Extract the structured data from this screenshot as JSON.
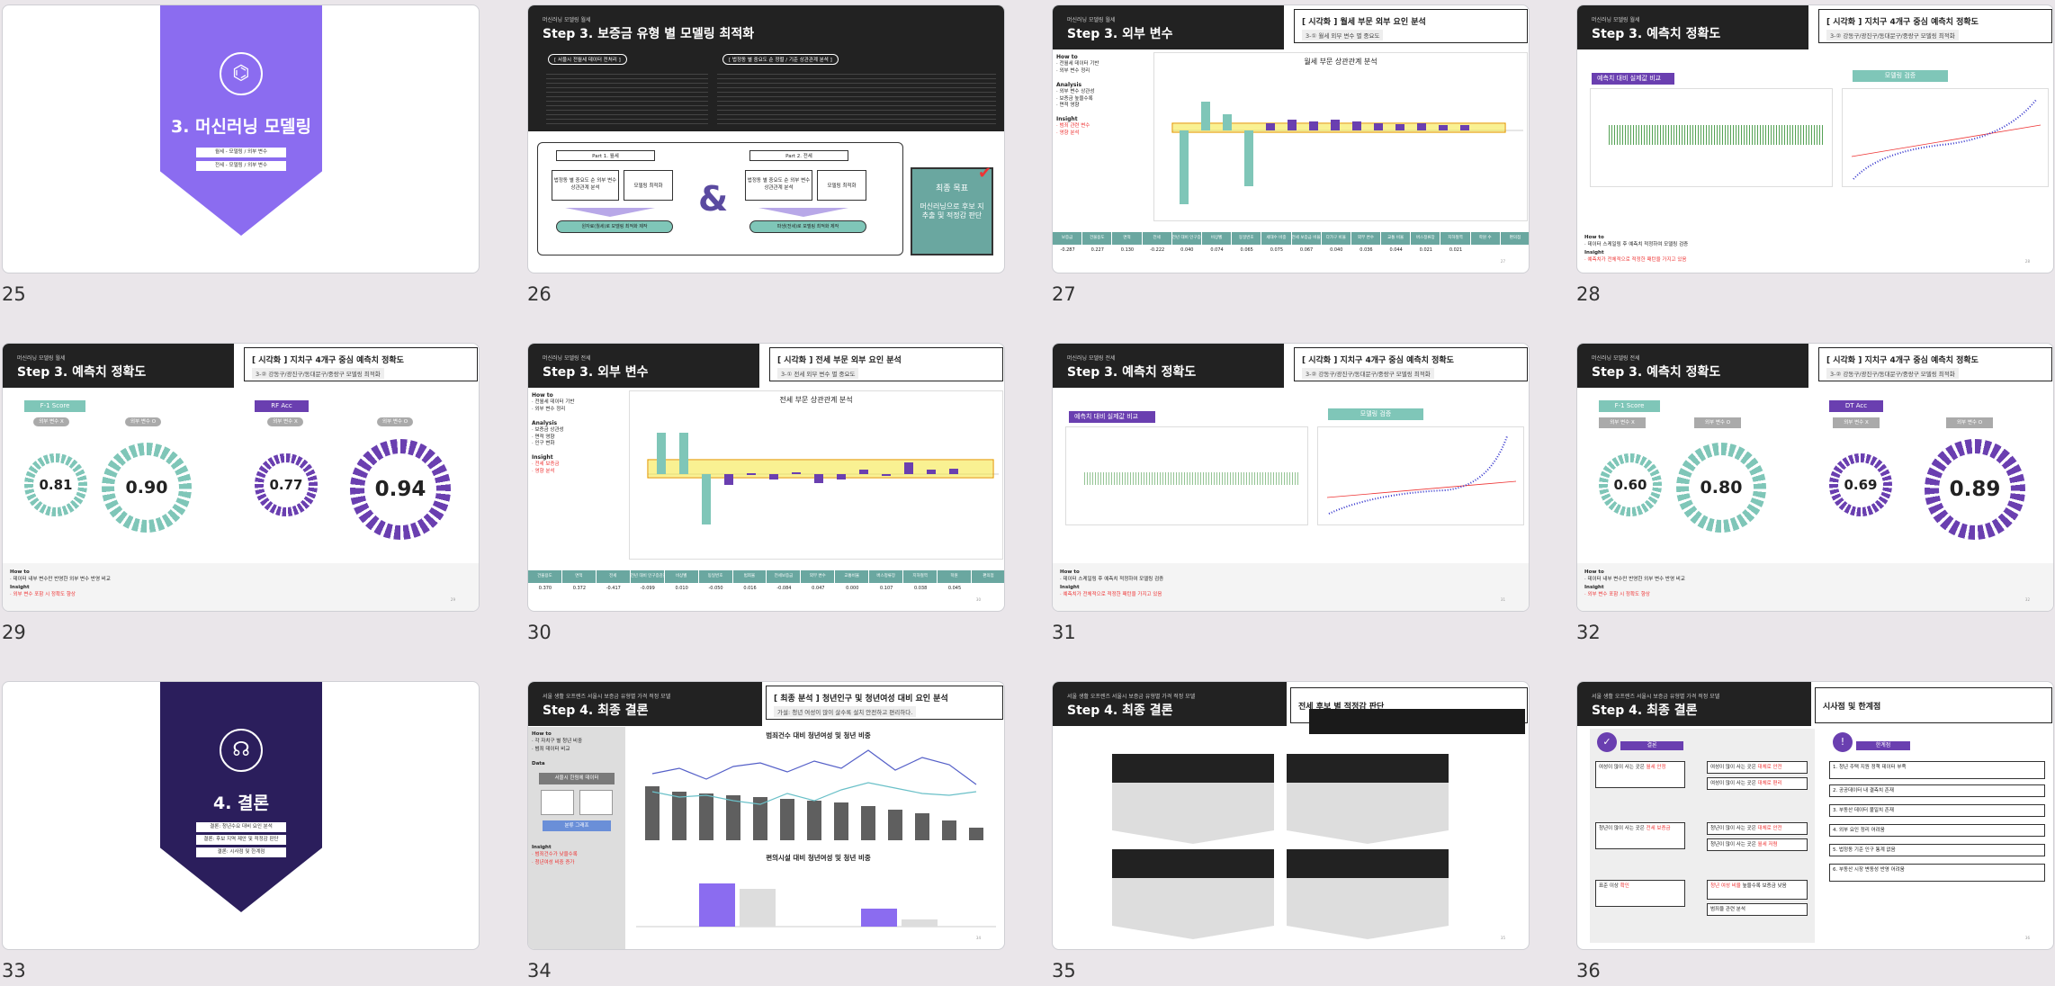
{
  "slides": [
    {
      "num": "25",
      "cover_title": "3. 머신러닝 모델링",
      "cover_items": [
        "월세 - 모델링 / 외부 변수",
        "전세 - 모델링 / 외부 변수"
      ]
    },
    {
      "num": "26",
      "sup": "머신러닝 모델링 월세",
      "title": "Step 3. 보증금 유형 별 모델링 최적화",
      "label_left": "[ 서울시 전월세 데이터 전처리 ]",
      "label_right": "[ 법정동 별 중요도 순 정렬 / 기준 상관관계 분석 ]",
      "part1": "Part 1. 월세",
      "part2": "Part 2. 전세",
      "p1a": "법정동 별 중요도 순 외부 변수 상관관계 분석",
      "p1b": "모델링 최적화",
      "p2a": "법정동 별 중요도 순 외부 변수 상관관계 분석",
      "p2b": "모델링 최적화",
      "p1c": "원자료(월세)로 모델링 최적화 제작",
      "p2c": "파생(전세)로 모델링 최적화 제작",
      "amp": "&",
      "goal_title": "최종 목표",
      "goal_text": "머신러닝으로 후보 지 추출 및 적정감 판단"
    },
    {
      "num": "27",
      "sup": "머신러닝 모델링 월세",
      "title": "Step 3. 외부 변수",
      "box_t1": "[ 시각화 ] 월세 부문 외부 요인 분석",
      "box_t2": "3-① 월세 외부 변수 별 중요도",
      "chart_title": "월세 부문 상관관계 분석",
      "howto": "How to",
      "analysis": "Analysis",
      "insight": "Insight",
      "headers": [
        "보증금",
        "건물용도",
        "면적",
        "전세",
        "전년 대비 인구증감율",
        "비상벨",
        "동일번호",
        "세대수 비중",
        "전세 보증금 비율",
        "다가구 비율",
        "외부 변수",
        "교통 비율",
        "버스정류장",
        "지하철역",
        "학원 수",
        "편의점"
      ],
      "values": [
        "-0.287",
        "0.227",
        "0.130",
        "-0.222",
        "0.040",
        "0.074",
        "0.065",
        "0.075",
        "0.067",
        "0.040",
        "0.036",
        "0.044",
        "0.021",
        "0.021",
        "",
        ""
      ]
    },
    {
      "num": "28",
      "sup": "머신러닝 모델링 월세",
      "title": "Step 3. 예측치 정확도",
      "box_t1": "[ 시각화 ] 지치구 4개구 중심 예측치 정확도",
      "box_t2": "3-② 강동구/광진구/동대문구/중랑구 모델링 최적화",
      "purple": "예측치 대비 실제값 비교",
      "teal": "모델링 검증",
      "howto": "How to",
      "insight": "Insight"
    },
    {
      "num": "29",
      "sup": "머신러닝 모델링 월세",
      "title": "Step 3. 예측치 정확도",
      "box_t1": "[ 시각화 ] 지치구 4개구 중심 예측치 정확도",
      "box_t2": "3-② 강동구/광진구/동대문구/중랑구 모델링 최적화",
      "left_pill": "F-1 Score",
      "right_pill": "RF Acc",
      "chip1": "외부 변수 X",
      "chip2": "외부 변수 O",
      "chip3": "외부 변수 X",
      "chip4": "외부 변수 O",
      "v1": "0.81",
      "v2": "0.90",
      "v3": "0.77",
      "v4": "0.94",
      "howto": "How to",
      "insight": "Insight"
    },
    {
      "num": "30",
      "sup": "머신러닝 모델링 전세",
      "title": "Step 3. 외부 변수",
      "box_t1": "[ 시각화 ] 전세 부문 외부 요인 분석",
      "box_t2": "3-① 전세 외부 변수 별 중요도",
      "chart_title": "전세 부문 상관관계 분석",
      "howto": "How to",
      "analysis": "Analysis",
      "insight": "Insight",
      "headers": [
        "건물용도",
        "면적",
        "전세",
        "전년 대비 인구증감율",
        "비상벨",
        "동일번호",
        "범죄율",
        "전세보증금",
        "외부 변수",
        "교통비율",
        "버스정류장",
        "지하철역",
        "학원",
        "편의점"
      ],
      "values": [
        "0.370",
        "0.372",
        "-0.417",
        "-0.099",
        "0.010",
        "-0.050",
        "0.016",
        "-0.084",
        "0.047",
        "0.000",
        "0.107",
        "0.038",
        "0.045",
        ""
      ]
    },
    {
      "num": "31",
      "sup": "머신러닝 모델링 전세",
      "title": "Step 3. 예측치 정확도",
      "box_t1": "[ 시각화 ] 지치구 4개구 중심 예측치 정확도",
      "box_t2": "3-② 강동구/광진구/동대문구/중랑구 모델링 최적화",
      "purple": "예측치 대비 실제값 비교",
      "teal": "모델링 검증",
      "howto": "How to",
      "insight": "Insight"
    },
    {
      "num": "32",
      "sup": "머신러닝 모델링 전세",
      "title": "Step 3. 예측치 정확도",
      "box_t1": "[ 시각화 ] 지치구 4개구 중심 예측치 정확도",
      "box_t2": "3-② 강동구/광진구/동대문구/중랑구 모델링 최적화",
      "left_pill": "F-1 Score",
      "right_pill": "DT Acc",
      "chip1": "외부 변수 X",
      "chip2": "외부 변수 O",
      "chip3": "외부 변수 X",
      "chip4": "외부 변수 O",
      "v1": "0.60",
      "v2": "0.80",
      "v3": "0.69",
      "v4": "0.89",
      "howto": "How to",
      "insight": "Insight"
    },
    {
      "num": "33",
      "cover_title": "4. 결론",
      "cover_items": [
        "결론: 청년수요 대비 요인 분석",
        "결론: 후보 지역 제안 및 적정감 판단",
        "결론: 시사점 및 한계점"
      ]
    },
    {
      "num": "34",
      "sup": "서울 생활 오프렌즈 서울시 보증금 유형별 가격 적정 모델",
      "title": "Step 4. 최종 결론",
      "box_t1": "[ 최종 분석 ] 청년인구 및 청년여성 대비 요인 분석",
      "box_t2": "가설: 청년 여성이 많이 살수록 설치 안전하고 편리하다.",
      "chart1_title": "범죄건수 대비 청년여성 및 청년 비중",
      "chart2_title": "편의시설 대비 청년여성 및 청년 비중",
      "howto": "How to",
      "data": "Data",
      "insight": "Insight",
      "data_box": "서울시 한림에 데이터",
      "flow_btn": "분류 그래프"
    },
    {
      "num": "35",
      "sup": "서울 생활 오프렌즈 서울시 보증금 유형별 가격 적정 모델",
      "title": "Step 4. 최종 결론",
      "box_t1": "전세 후보 별 적정감 판단"
    },
    {
      "num": "36",
      "sup": "서울 생활 오프렌즈 서울시 보증금 유형별 가격 적정 모델",
      "title": "Step 4. 최종 결론",
      "box_t1": "시사점 및 한계점",
      "left_head": "결론",
      "right_head": "한계점"
    }
  ],
  "colors": {
    "purple": "#6a3fb0",
    "cover25": "#8b6cf0",
    "cover33": "#2b1e5c",
    "teal": "#7fc6b8",
    "red": "#e33"
  }
}
